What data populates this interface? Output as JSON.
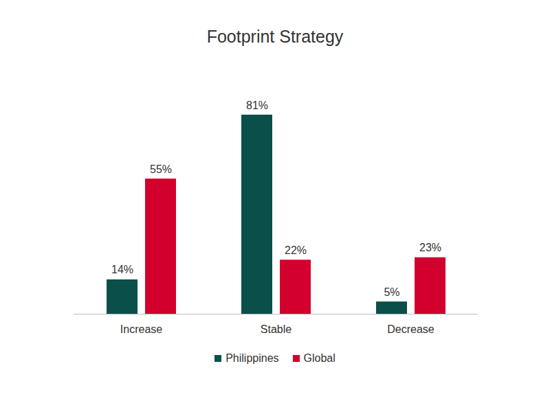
{
  "chart_data": {
    "type": "bar",
    "title": "Footprint Strategy",
    "categories": [
      "Increase",
      "Stable",
      "Decrease"
    ],
    "series": [
      {
        "name": "Philippines",
        "color": "#0b4f4a",
        "values": [
          14,
          81,
          5
        ],
        "value_labels": [
          "14%",
          "81%",
          "5%"
        ]
      },
      {
        "name": "Global",
        "color": "#d3002d",
        "values": [
          55,
          22,
          23
        ],
        "value_labels": [
          "55%",
          "22%",
          "23%"
        ]
      }
    ],
    "data_labels": true,
    "tick_labels": "x",
    "legend": "bottom",
    "grid": false
  }
}
